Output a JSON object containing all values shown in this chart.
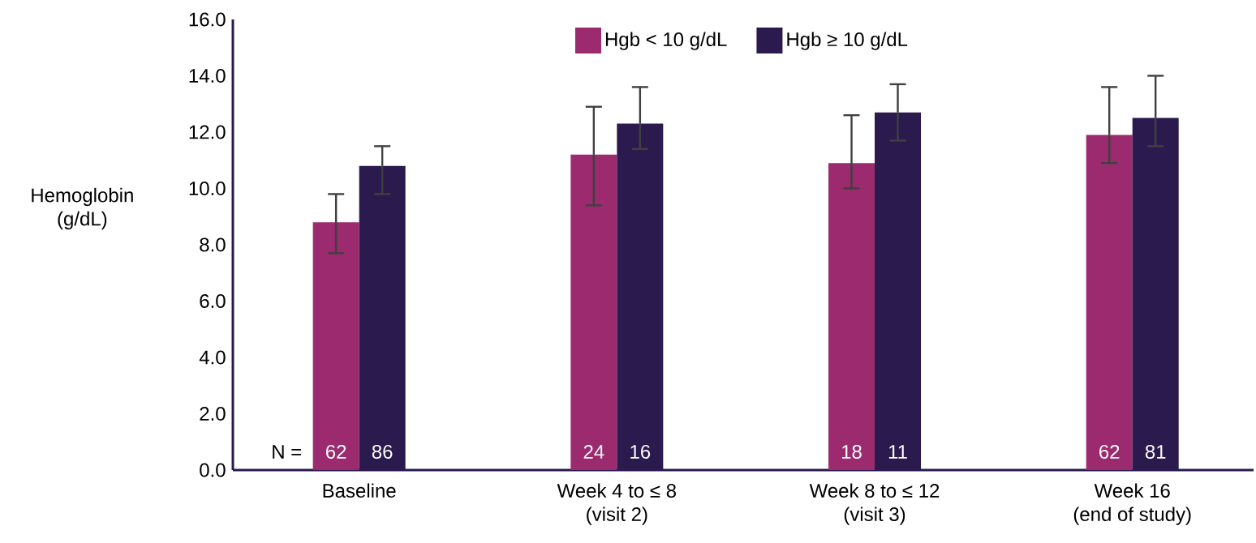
{
  "chart_data": {
    "type": "bar",
    "categories": [
      "Baseline",
      "Week 4 to ≤ 8\n(visit 2)",
      "Week 8 to ≤ 12\n(visit 3)",
      "Week 16\n(end of study)"
    ],
    "ylabel": "Hemoglobin\n(g/dL)",
    "series": [
      {
        "name": "Hgb < 10 g/dL",
        "color": "#9b2a6e",
        "values": [
          8.8,
          11.2,
          10.9,
          11.9
        ],
        "errors": [
          [
            7.7,
            9.8
          ],
          [
            9.4,
            12.9
          ],
          [
            10.0,
            12.6
          ],
          [
            10.9,
            13.6
          ]
        ]
      },
      {
        "name": "Hgb ≥ 10 g/dL",
        "color": "#2a1a4d",
        "values": [
          10.8,
          12.3,
          12.7,
          12.5
        ],
        "errors": [
          [
            9.8,
            11.5
          ],
          [
            11.4,
            13.6
          ],
          [
            11.7,
            13.7
          ],
          [
            11.5,
            14.0
          ]
        ]
      }
    ],
    "ylim": [
      0,
      16
    ],
    "yticks": [
      {
        "value": 0,
        "label": "0.0"
      },
      {
        "value": 2,
        "label": "2.0"
      },
      {
        "value": 4,
        "label": "4.0"
      },
      {
        "value": 6,
        "label": "6.0"
      },
      {
        "value": 8,
        "label": "8.0"
      },
      {
        "value": 10,
        "label": "10.0"
      },
      {
        "value": 12,
        "label": "12.0"
      },
      {
        "value": 14,
        "label": "14.0"
      },
      {
        "value": 16,
        "label": "16.0"
      }
    ],
    "legend": "top",
    "annotations": [
      "N =",
      "62",
      "86",
      "24",
      "16",
      "18",
      "11",
      "62",
      "81"
    ]
  }
}
